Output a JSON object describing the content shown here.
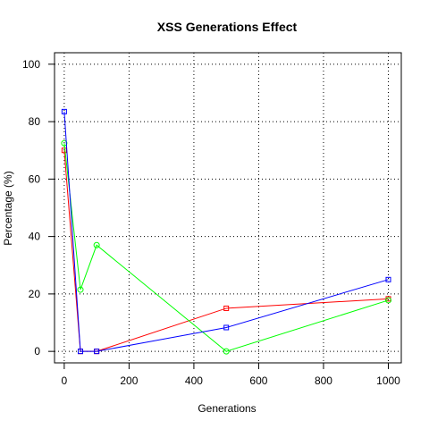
{
  "chart_data": {
    "type": "line",
    "title": "XSS Generations Effect",
    "xlabel": "Generations",
    "ylabel": "Percentage (%)",
    "xlim": [
      -30,
      1040
    ],
    "ylim": [
      -4,
      104
    ],
    "x_ticks": [
      0,
      200,
      400,
      600,
      800,
      1000
    ],
    "y_ticks": [
      0,
      20,
      40,
      60,
      80,
      100
    ],
    "grid": true,
    "grid_style": "dotted",
    "series": [
      {
        "color": "#ff0000",
        "marker": "square",
        "x": [
          0,
          50,
          100,
          500,
          1000
        ],
        "y": [
          70,
          0,
          0,
          15,
          18.3
        ]
      },
      {
        "color": "#00ff00",
        "marker": "circle",
        "x": [
          0,
          50,
          100,
          500,
          1000
        ],
        "y": [
          72.5,
          21.5,
          37,
          0,
          17.8
        ]
      },
      {
        "color": "#0000ff",
        "marker": "square",
        "x": [
          0,
          50,
          100,
          500,
          1000
        ],
        "y": [
          83.5,
          0,
          0,
          8.3,
          25
        ]
      }
    ]
  }
}
